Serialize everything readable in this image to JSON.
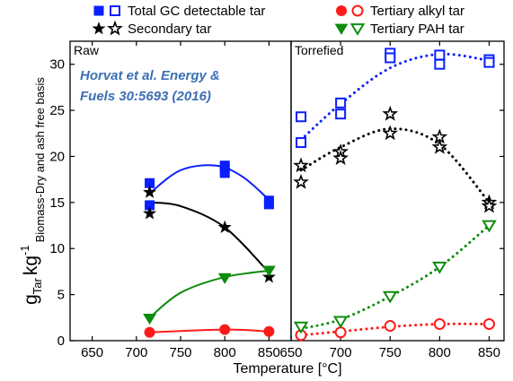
{
  "chart_data": {
    "type": "scatter",
    "xlabel": "Temperature [°C]",
    "ylabel": {
      "main": "g",
      "main_sub": "Tar",
      "unit": "kg",
      "unit_sup": "-1",
      "sub": "Biomass-Dry and ash free basis"
    },
    "ylim": [
      0,
      32.5
    ],
    "y_ticks": [
      0,
      5,
      10,
      15,
      20,
      25,
      30
    ],
    "legend_placement": "top",
    "citation": [
      "Horvat et al. Energy &",
      "Fuels 30:5693 (2016)"
    ],
    "panels": [
      {
        "name": "Raw",
        "xlim": [
          625,
          875
        ],
        "x_ticks": [
          650,
          700,
          750,
          800,
          850
        ],
        "series": [
          {
            "name": "Total GC detectable tar",
            "color": "#0a1fff",
            "marker": "square",
            "filled": true,
            "x": [
              715,
              715,
              800,
              800,
              800,
              850,
              850
            ],
            "y": [
              17.1,
              14.7,
              18.7,
              18.2,
              19.0,
              15.2,
              14.8
            ],
            "fit": [
              [
                715,
                16.0
              ],
              [
                750,
                18.5
              ],
              [
                790,
                19.0
              ],
              [
                820,
                17.8
              ],
              [
                850,
                15.3
              ]
            ]
          },
          {
            "name": "Secondary tar",
            "color": "#000000",
            "marker": "star",
            "filled": true,
            "x": [
              715,
              715,
              800,
              850
            ],
            "y": [
              16.1,
              13.8,
              12.3,
              6.9
            ],
            "fit": [
              [
                715,
                15.0
              ],
              [
                750,
                14.6
              ],
              [
                800,
                12.3
              ],
              [
                850,
                7.4
              ]
            ]
          },
          {
            "name": "Tertiary alkyl tar",
            "color": "#ff1a1a",
            "marker": "circle",
            "filled": true,
            "x": [
              715,
              800,
              850
            ],
            "y": [
              0.9,
              1.2,
              1.0
            ],
            "fit": [
              [
                715,
                0.9
              ],
              [
                800,
                1.2
              ],
              [
                850,
                1.0
              ]
            ]
          },
          {
            "name": "Tertiary PAH tar",
            "color": "#0d8c0d",
            "marker": "triangle-down",
            "filled": true,
            "x": [
              715,
              800,
              850
            ],
            "y": [
              2.4,
              6.8,
              7.6
            ],
            "fit": [
              [
                715,
                2.5
              ],
              [
                750,
                5.2
              ],
              [
                800,
                6.9
              ],
              [
                850,
                7.6
              ]
            ]
          }
        ]
      },
      {
        "name": "Torrefied",
        "xlim": [
          650,
          865
        ],
        "x_ticks": [
          650,
          700,
          750,
          800,
          850
        ],
        "series": [
          {
            "name": "Total GC detectable tar",
            "color": "#0a1fff",
            "marker": "square",
            "filled": false,
            "x": [
              660,
              660,
              700,
              700,
              750,
              750,
              800,
              800,
              850,
              850
            ],
            "y": [
              24.3,
              21.5,
              25.8,
              24.6,
              31.2,
              30.7,
              31.0,
              30.0,
              30.5,
              30.2
            ],
            "fit": [
              [
                660,
                21.8
              ],
              [
                700,
                25.7
              ],
              [
                750,
                29.6
              ],
              [
                800,
                31.1
              ],
              [
                850,
                30.4
              ]
            ]
          },
          {
            "name": "Secondary tar",
            "color": "#000000",
            "marker": "star",
            "filled": false,
            "x": [
              660,
              660,
              700,
              700,
              750,
              750,
              800,
              800,
              850,
              850
            ],
            "y": [
              19.0,
              17.2,
              20.5,
              19.8,
              24.6,
              22.5,
              22.1,
              21.0,
              15.0,
              14.6
            ],
            "fit": [
              [
                660,
                18.5
              ],
              [
                700,
                21.0
              ],
              [
                750,
                23.0
              ],
              [
                800,
                21.3
              ],
              [
                850,
                15.0
              ]
            ]
          },
          {
            "name": "Tertiary alkyl tar",
            "color": "#ff1a1a",
            "marker": "circle",
            "filled": false,
            "x": [
              660,
              700,
              750,
              800,
              850
            ],
            "y": [
              0.6,
              0.9,
              1.6,
              1.8,
              1.8
            ],
            "fit": [
              [
                660,
                0.6
              ],
              [
                700,
                1.0
              ],
              [
                750,
                1.5
              ],
              [
                800,
                1.8
              ],
              [
                850,
                1.8
              ]
            ]
          },
          {
            "name": "Tertiary PAH tar",
            "color": "#0d8c0d",
            "marker": "triangle-down",
            "filled": false,
            "x": [
              660,
              700,
              750,
              800,
              850
            ],
            "y": [
              1.5,
              2.1,
              4.8,
              8.0,
              12.5
            ],
            "fit": [
              [
                660,
                1.3
              ],
              [
                700,
                2.3
              ],
              [
                750,
                4.8
              ],
              [
                800,
                8.0
              ],
              [
                850,
                12.5
              ]
            ]
          }
        ]
      }
    ],
    "legend": [
      {
        "label": "Total GC detectable tar",
        "color": "#0a1fff",
        "marker": "square"
      },
      {
        "label": "Tertiary alkyl tar",
        "color": "#ff1a1a",
        "marker": "circle"
      },
      {
        "label": "Secondary tar",
        "color": "#000000",
        "marker": "star"
      },
      {
        "label": "Tertiary PAH tar",
        "color": "#0d8c0d",
        "marker": "triangle-down"
      }
    ]
  }
}
